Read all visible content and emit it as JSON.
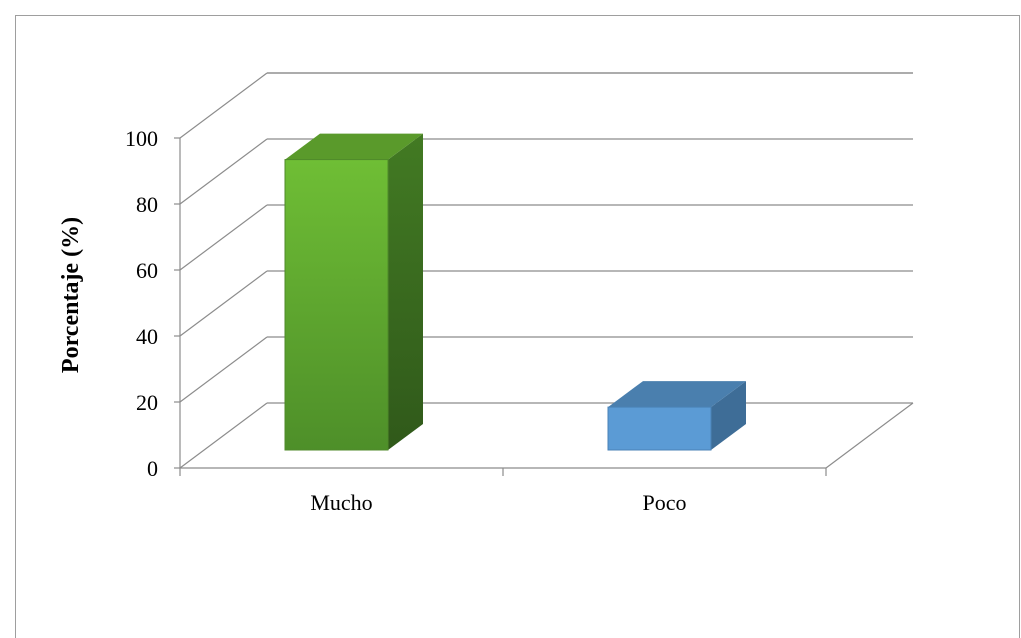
{
  "chart_data": {
    "type": "bar",
    "style": "3d-column",
    "categories": [
      "Mucho",
      "Poco"
    ],
    "values": [
      88,
      13
    ],
    "colors": [
      "#6cb33a",
      "#5b9bd5"
    ],
    "ylabel": "Porcentaje (%)",
    "xlabel": "",
    "ylim": [
      0,
      100
    ],
    "yticks": [
      "0",
      "20",
      "40",
      "60",
      "80",
      "100"
    ],
    "grid": true
  }
}
